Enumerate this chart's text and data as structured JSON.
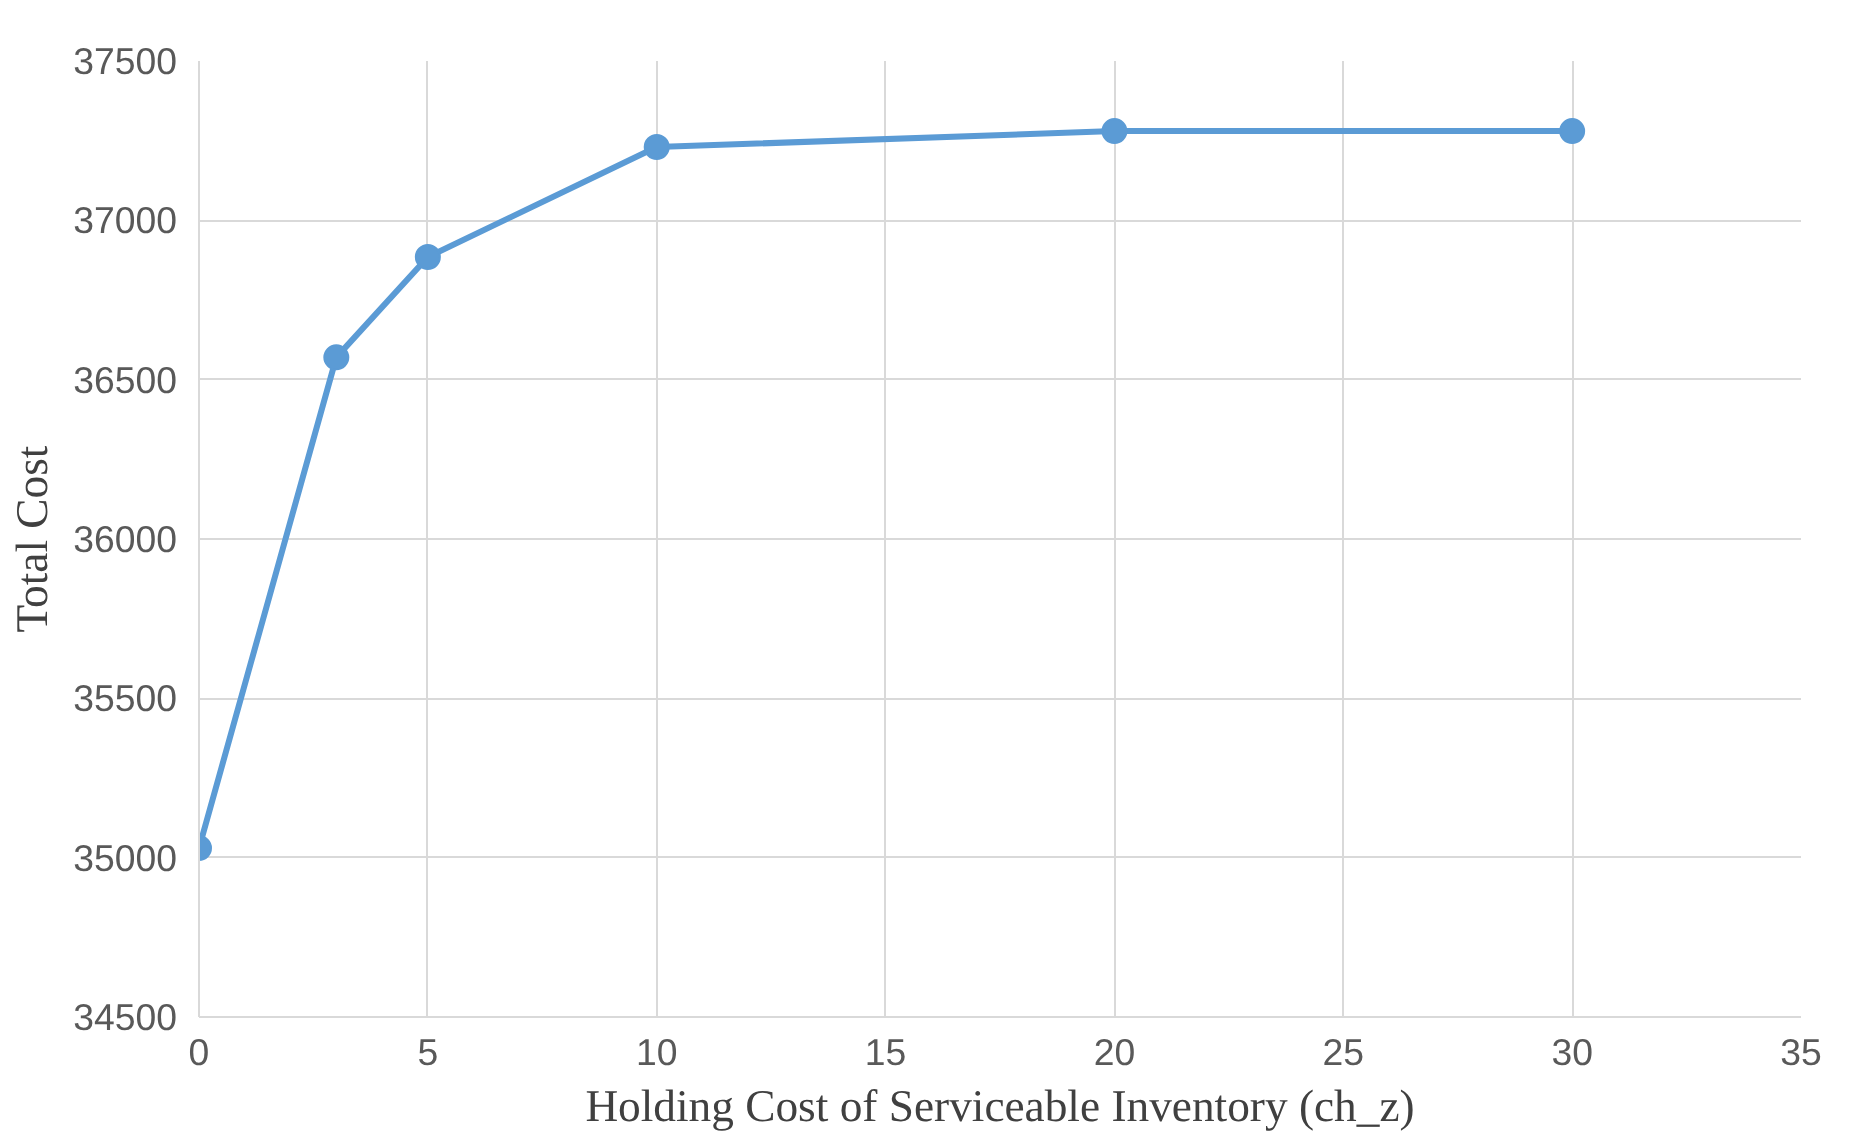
{
  "chart_data": {
    "type": "line",
    "xlabel": "Holding Cost of Serviceable Inventory (ch_z)",
    "ylabel": "Total Cost",
    "x": [
      0,
      3,
      5,
      10,
      20,
      30
    ],
    "series": [
      {
        "color": "#5b9bd5",
        "values": [
          35030,
          36570,
          36885,
          37230,
          37280,
          37280
        ]
      }
    ],
    "xlim": [
      0,
      35
    ],
    "xticks": [
      0,
      5,
      10,
      15,
      20,
      25,
      30,
      35
    ],
    "ylim": [
      34500,
      37500
    ],
    "yticks": [
      34500,
      35000,
      35500,
      36000,
      36500,
      37000,
      37500
    ],
    "grid": true,
    "marker": "circle",
    "line_style": "solid"
  }
}
